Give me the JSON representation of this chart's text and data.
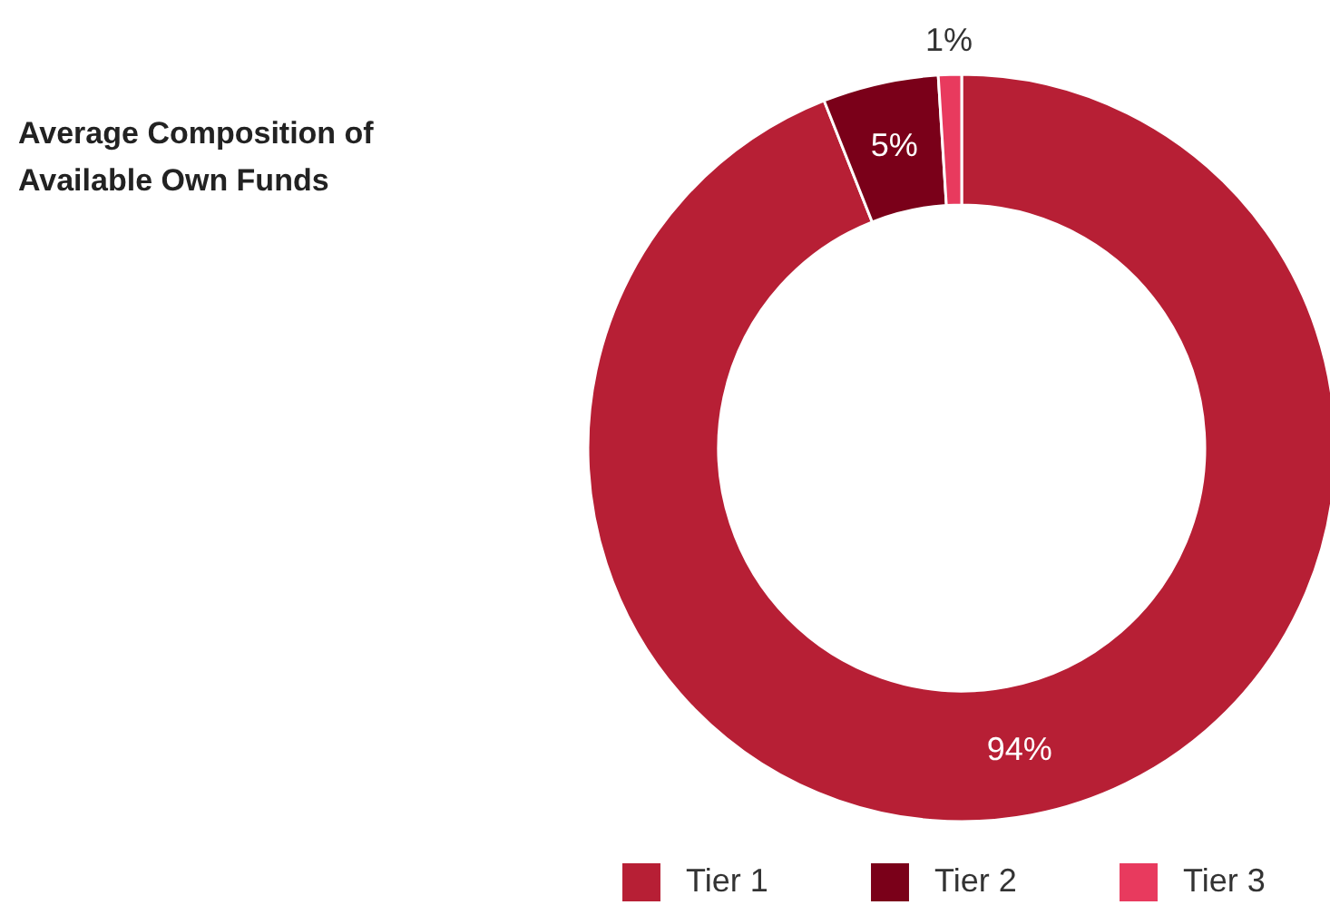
{
  "chart_data": {
    "type": "donut",
    "title": "Average Composition of Available Own Funds",
    "categories": [
      "Tier 1",
      "Tier 2",
      "Tier 3"
    ],
    "values": [
      94,
      5,
      1
    ],
    "colors": [
      "#b71f35",
      "#7a0019",
      "#e83a5e"
    ],
    "value_labels": [
      "94%",
      "5%",
      "1%"
    ],
    "legend": "bottom"
  }
}
